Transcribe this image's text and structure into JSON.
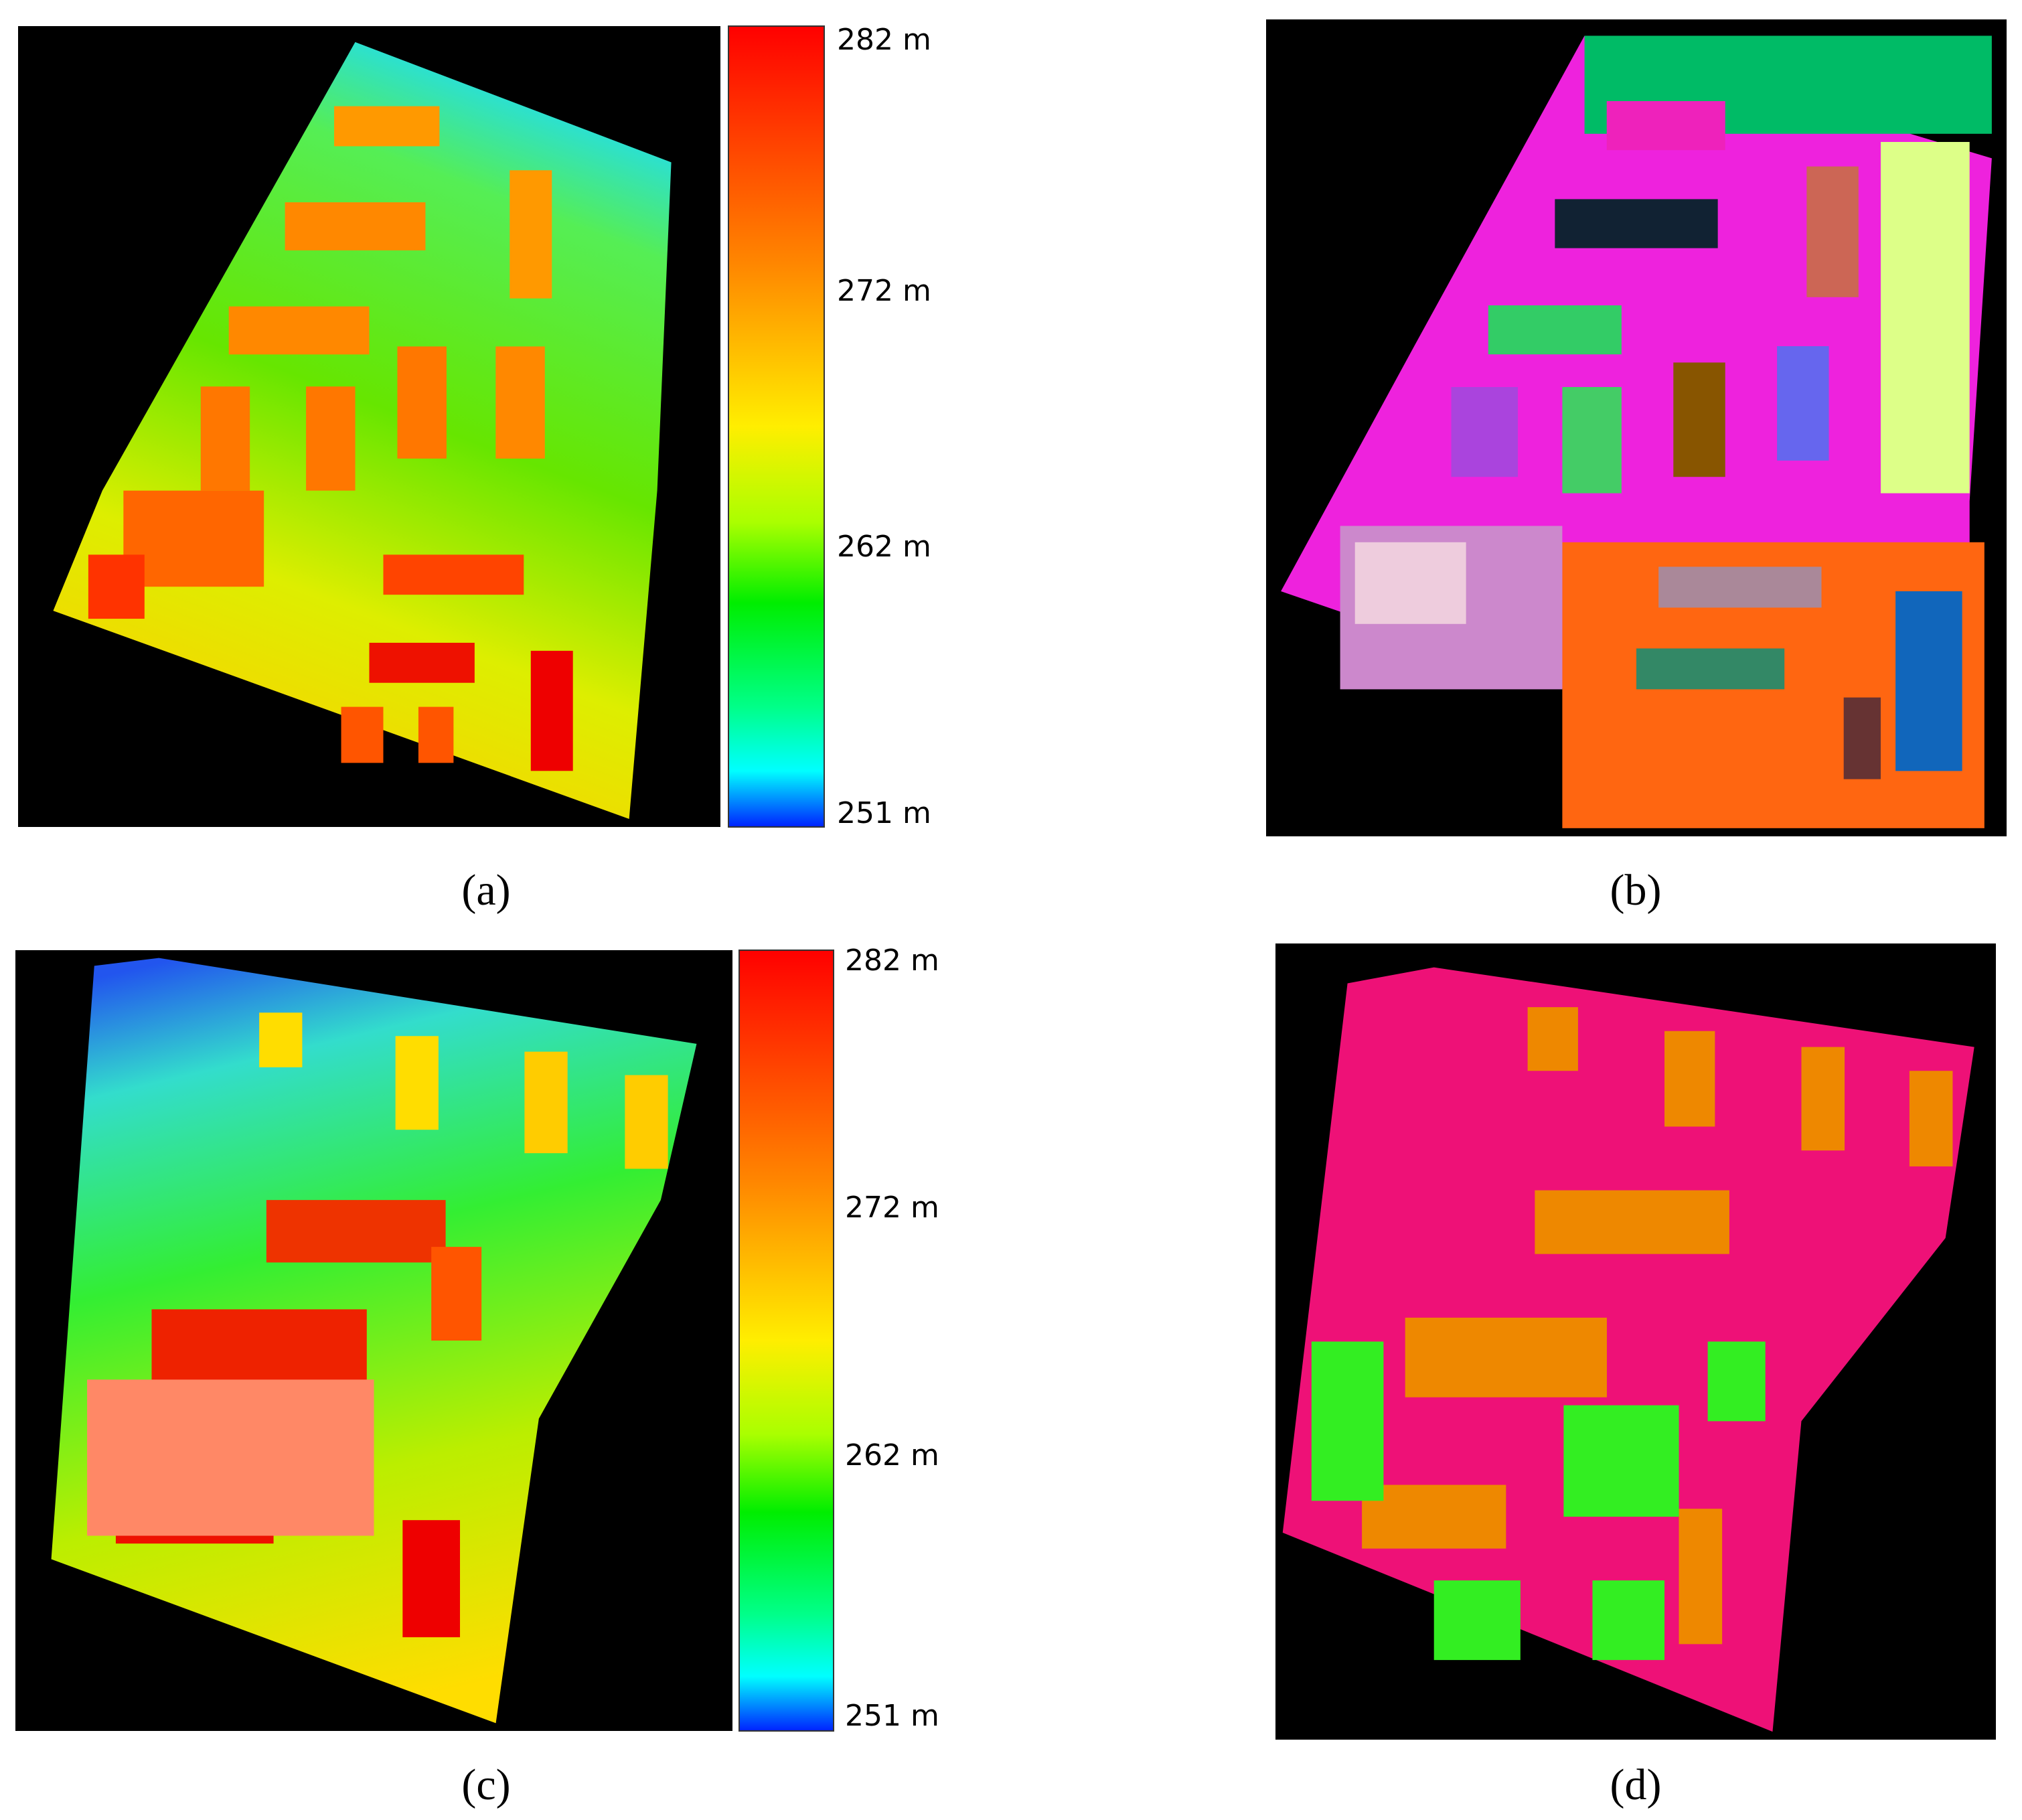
{
  "panels": [
    {
      "label": "(a)",
      "colorbar": {
        "ticks": [
          "282 m",
          "272 m",
          "262 m",
          "251 m"
        ]
      }
    },
    {
      "label": "(b)"
    },
    {
      "label": "(c)",
      "colorbar": {
        "ticks": [
          "282 m",
          "272 m",
          "262 m",
          "251 m"
        ]
      }
    },
    {
      "label": "(d)"
    }
  ]
}
